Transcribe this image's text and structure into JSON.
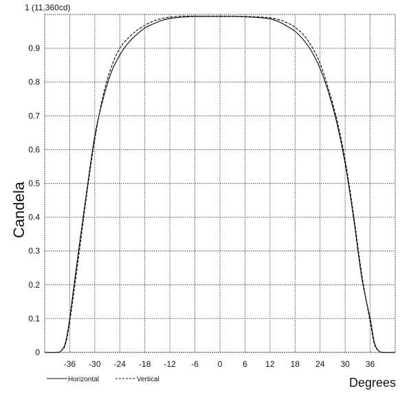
{
  "chart_data": {
    "type": "line",
    "title": "",
    "xlabel": "Degrees",
    "ylabel": "Candela",
    "top_label": "1 (11,360cd)",
    "xlim": [
      -42,
      42
    ],
    "ylim": [
      0,
      1
    ],
    "x_ticks": [
      "-36",
      "-30",
      "-24",
      "-18",
      "-12",
      "-6",
      "0",
      "6",
      "12",
      "18",
      "24",
      "30",
      "36"
    ],
    "y_ticks": [
      "0",
      "0.1",
      "0.2",
      "0.3",
      "0.4",
      "0.5",
      "0.6",
      "0.7",
      "0.8",
      "0.9"
    ],
    "grid": true,
    "legend": "bottom-left",
    "series": [
      {
        "name": "Horizontal",
        "style": "solid",
        "x": [
          -42,
          -39,
          -38,
          -37,
          -36,
          -34,
          -32,
          -30,
          -28,
          -26,
          -24,
          -22,
          -20,
          -18,
          -16,
          -14,
          -12,
          -9,
          -6,
          -3,
          0,
          3,
          6,
          9,
          12,
          14,
          16,
          18,
          20,
          22,
          24,
          26,
          28,
          30,
          32,
          34,
          36,
          37,
          38,
          39,
          42
        ],
        "y": [
          0.0,
          0.0,
          0.005,
          0.03,
          0.1,
          0.29,
          0.47,
          0.64,
          0.75,
          0.83,
          0.88,
          0.915,
          0.94,
          0.96,
          0.972,
          0.982,
          0.988,
          0.992,
          0.994,
          0.994,
          0.994,
          0.994,
          0.993,
          0.991,
          0.987,
          0.979,
          0.966,
          0.95,
          0.925,
          0.89,
          0.84,
          0.77,
          0.68,
          0.56,
          0.4,
          0.22,
          0.1,
          0.03,
          0.005,
          0.0,
          0.0
        ]
      },
      {
        "name": "Vertical",
        "style": "dashed",
        "x": [
          -42,
          -39,
          -38,
          -37,
          -36,
          -34,
          -32,
          -30,
          -28,
          -26,
          -24,
          -22,
          -20,
          -18,
          -16,
          -14,
          -12,
          -9,
          -6,
          -3,
          0,
          3,
          6,
          9,
          12,
          14,
          16,
          18,
          20,
          22,
          24,
          26,
          28,
          30,
          32,
          34,
          36,
          37,
          38,
          39,
          42
        ],
        "y": [
          0.0,
          0.0,
          0.005,
          0.025,
          0.09,
          0.27,
          0.46,
          0.63,
          0.76,
          0.845,
          0.9,
          0.93,
          0.952,
          0.968,
          0.98,
          0.988,
          0.992,
          0.995,
          0.995,
          0.995,
          0.995,
          0.995,
          0.994,
          0.993,
          0.99,
          0.985,
          0.976,
          0.962,
          0.94,
          0.905,
          0.855,
          0.78,
          0.69,
          0.57,
          0.41,
          0.23,
          0.09,
          0.025,
          0.005,
          0.0,
          0.0
        ]
      }
    ]
  }
}
